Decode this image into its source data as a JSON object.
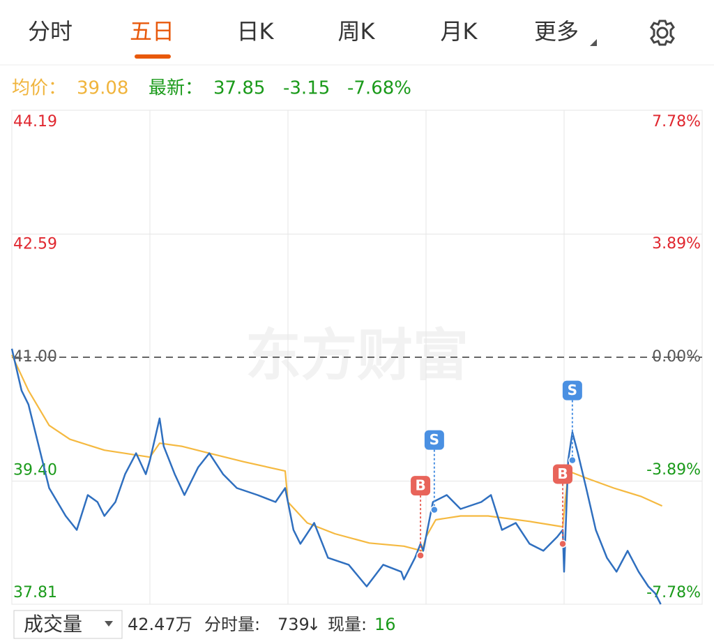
{
  "tabs": [
    "分时",
    "五日",
    "日K",
    "周K",
    "月K",
    "更多"
  ],
  "info": {
    "avg_label": "均价：",
    "avg": "39.08",
    "last_label": "最新：",
    "last": "37.85",
    "change": "-3.15",
    "change_pct": "-7.68%"
  },
  "watermark": "东方财富",
  "chart_data": {
    "type": "line",
    "ylim": [
      37.81,
      44.19
    ],
    "yticks": [
      44.19,
      42.59,
      {
        "value": 41,
        "label": "41.00"
      },
      {
        "value": 39.4,
        "label": "39.40"
      },
      37.81
    ],
    "y2lim": [
      -7.78,
      7.78
    ],
    "y2ticks": [
      {
        "value": 7.78,
        "label": "7.78%"
      },
      {
        "value": 3.89,
        "label": "3.89%"
      },
      {
        "value": 0,
        "label": "0.00%"
      },
      {
        "value": -3.89,
        "label": "-3.89%"
      },
      {
        "value": -7.78,
        "label": "-7.78%"
      }
    ],
    "xlim": [
      0,
      5
    ],
    "xticks": [
      1,
      2,
      3,
      4
    ],
    "reference_line": 41,
    "grid": true,
    "series": [
      {
        "name": "最新",
        "color": "#2f6fbf",
        "x": [
          0,
          0.07,
          0.12,
          0.17,
          0.27,
          0.39,
          0.47,
          0.55,
          0.62,
          0.67,
          0.75,
          0.82,
          0.9,
          0.97,
          1.0,
          1.07,
          1.1,
          1.18,
          1.25,
          1.35,
          1.43,
          1.53,
          1.63,
          1.78,
          1.91,
          1.98,
          2.04,
          2.09,
          2.19,
          2.29,
          2.44,
          2.57,
          2.69,
          2.82,
          2.84,
          2.92,
          2.96,
          2.98,
          3.05,
          3.15,
          3.25,
          3.4,
          3.47,
          3.55,
          3.65,
          3.75,
          3.85,
          3.95,
          3.99,
          4.0,
          4.03,
          4.06,
          4.1,
          4.16,
          4.23,
          4.31,
          4.38,
          4.46,
          4.54,
          4.61,
          4.66,
          4.7
        ],
        "values": [
          41.11,
          40.57,
          40.39,
          40.03,
          39.31,
          38.95,
          38.77,
          39.22,
          39.13,
          38.95,
          39.13,
          39.49,
          39.76,
          39.49,
          39.67,
          40.21,
          39.85,
          39.49,
          39.22,
          39.58,
          39.76,
          39.49,
          39.31,
          39.22,
          39.13,
          39.31,
          38.77,
          38.59,
          38.86,
          38.41,
          38.32,
          38.04,
          38.32,
          38.23,
          38.13,
          38.41,
          38.59,
          38.5,
          39.13,
          39.22,
          39.04,
          39.13,
          39.22,
          38.77,
          38.86,
          38.59,
          38.5,
          38.68,
          38.77,
          38.23,
          39.67,
          40.03,
          39.76,
          39.31,
          38.77,
          38.41,
          38.23,
          38.5,
          38.23,
          38.04,
          37.95,
          37.81
        ]
      },
      {
        "name": "均价",
        "color": "#f5b940",
        "x": [
          0,
          0.12,
          0.27,
          0.42,
          0.67,
          1.0,
          1.07,
          1.23,
          1.43,
          1.68,
          1.98,
          2.0,
          2.14,
          2.34,
          2.59,
          2.84,
          2.97,
          3.0,
          3.07,
          3.25,
          3.45,
          3.75,
          3.99,
          4.03,
          4.16,
          4.36,
          4.56,
          4.71
        ],
        "values": [
          41.03,
          40.57,
          40.12,
          39.94,
          39.8,
          39.71,
          39.89,
          39.85,
          39.76,
          39.65,
          39.53,
          39.13,
          38.86,
          38.72,
          38.6,
          38.56,
          38.5,
          38.68,
          38.9,
          38.95,
          38.95,
          38.88,
          38.81,
          39.53,
          39.44,
          39.31,
          39.2,
          39.08
        ]
      }
    ],
    "annotations": [
      {
        "label": "B",
        "x": 2.96,
        "y": 38.44,
        "color": "#e8645a"
      },
      {
        "label": "S",
        "x": 3.06,
        "y": 39.03,
        "color": "#4a90e2"
      },
      {
        "label": "B",
        "x": 3.99,
        "y": 38.59,
        "color": "#e8645a"
      },
      {
        "label": "S",
        "x": 4.06,
        "y": 39.67,
        "color": "#4a90e2"
      }
    ]
  },
  "footer": {
    "indicator": "成交量",
    "volume": "42.47万",
    "minute_label": "分时量:",
    "minute": "739",
    "arrow": "↓",
    "now_label": "现量:",
    "now": "16"
  }
}
